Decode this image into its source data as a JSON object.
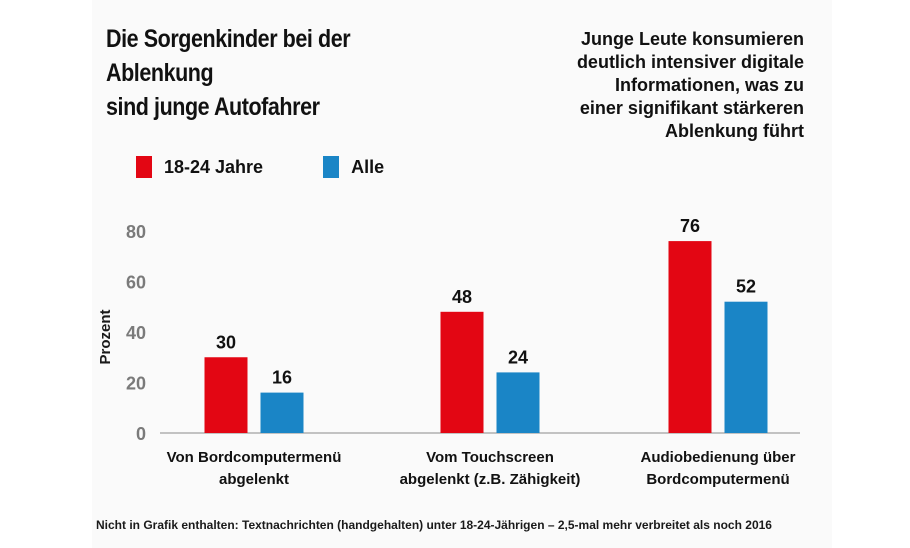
{
  "header": {
    "title_line1": "Die Sorgenkinder bei der Ablenkung",
    "title_line2": "sind junge Autofahrer",
    "subtitle_lines": [
      "Junge Leute konsumieren",
      "deutlich intensiver digitale",
      "Informationen, was zu",
      "einer signifikant stärkeren",
      "Ablenkung führt"
    ]
  },
  "colors": {
    "series_young": "#e30613",
    "series_all": "#1a85c6"
  },
  "chart_data": {
    "type": "bar",
    "categories": [
      [
        "Von Bordcomputermenü",
        "abgelenkt"
      ],
      [
        "Vom Touchscreen",
        "abgelenkt (z.B. Zähigkeit)"
      ],
      [
        "Audiobedienung über",
        "Bordcomputermenü"
      ]
    ],
    "series": [
      {
        "name": "18-24 Jahre",
        "values": [
          30,
          48,
          76
        ]
      },
      {
        "name": "Alle",
        "values": [
          16,
          24,
          52
        ]
      }
    ],
    "ylabel": "Prozent",
    "ylim": [
      0,
      80
    ],
    "yticks": [
      "0",
      "20",
      "40",
      "60",
      "80"
    ],
    "grid": false,
    "legend": "top-left"
  },
  "footnote": "Nicht in Grafik enthalten: Textnachrichten (handgehalten) unter 18-24-Jährigen – 2,5-mal mehr verbreitet als noch 2016"
}
